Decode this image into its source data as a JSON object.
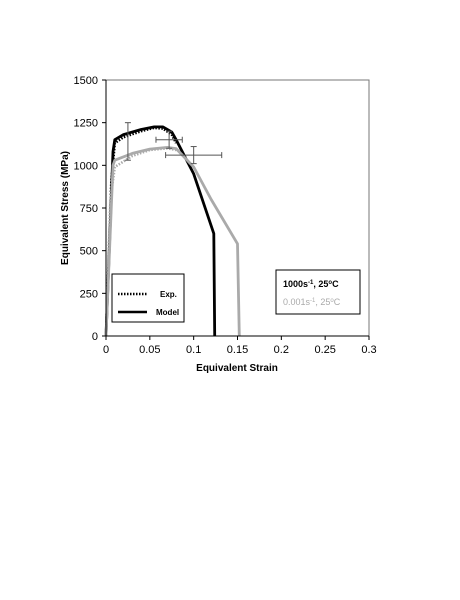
{
  "chart_data": {
    "type": "line",
    "xlabel": "Equivalent Strain",
    "ylabel": "Equivalent Stress (MPa)",
    "xlim": [
      0,
      0.3
    ],
    "ylim": [
      0,
      1500
    ],
    "x_ticks": [
      "0",
      "0.05",
      "0.1",
      "0.15",
      "0.2",
      "0.25",
      "0.3"
    ],
    "y_ticks": [
      "0",
      "250",
      "500",
      "750",
      "1000",
      "1250",
      "1500"
    ],
    "grid": false,
    "legend": {
      "placement": "bottom-left",
      "entries": [
        {
          "label": "Exp.",
          "style": "dotted",
          "color": "#000000"
        },
        {
          "label": "Model",
          "style": "solid",
          "color": "#000000"
        }
      ]
    },
    "conditions": [
      {
        "rate": "1000s",
        "exp": "-1",
        "rest": ", 25",
        "deg": "o",
        "unit": "C",
        "color": "#000000"
      },
      {
        "rate": "0.001s",
        "exp": "-1",
        "rest": ", 25",
        "deg": "o",
        "unit": "C",
        "color": "#aaaaaa"
      }
    ],
    "series": [
      {
        "condition": 0,
        "kind": "model",
        "color": "#000000",
        "style": "solid",
        "points": [
          [
            0,
            0
          ],
          [
            0.008,
            1080
          ],
          [
            0.01,
            1150
          ],
          [
            0.02,
            1180
          ],
          [
            0.04,
            1210
          ],
          [
            0.055,
            1225
          ],
          [
            0.065,
            1225
          ],
          [
            0.075,
            1195
          ],
          [
            0.08,
            1150
          ],
          [
            0.1,
            950
          ],
          [
            0.123,
            600
          ],
          [
            0.124,
            0
          ]
        ]
      },
      {
        "condition": 0,
        "kind": "exp",
        "color": "#000000",
        "style": "dotted",
        "points": [
          [
            0,
            0
          ],
          [
            0.006,
            900
          ],
          [
            0.01,
            1130
          ],
          [
            0.02,
            1165
          ],
          [
            0.04,
            1200
          ],
          [
            0.055,
            1220
          ],
          [
            0.065,
            1215
          ],
          [
            0.075,
            1180
          ],
          [
            0.08,
            1130
          ]
        ]
      },
      {
        "condition": 1,
        "kind": "model",
        "color": "#aaaaaa",
        "style": "solid",
        "points": [
          [
            0,
            0
          ],
          [
            0.008,
            1000
          ],
          [
            0.01,
            1030
          ],
          [
            0.03,
            1070
          ],
          [
            0.05,
            1095
          ],
          [
            0.07,
            1105
          ],
          [
            0.08,
            1098
          ],
          [
            0.1,
            990
          ],
          [
            0.12,
            800
          ],
          [
            0.15,
            540
          ],
          [
            0.152,
            0
          ]
        ]
      },
      {
        "condition": 1,
        "kind": "exp",
        "color": "#aaaaaa",
        "style": "dotted",
        "points": [
          [
            0,
            0
          ],
          [
            0.005,
            800
          ],
          [
            0.01,
            990
          ],
          [
            0.03,
            1055
          ],
          [
            0.05,
            1090
          ],
          [
            0.07,
            1100
          ],
          [
            0.08,
            1090
          ]
        ]
      }
    ],
    "error_bars": [
      {
        "x": 0.025,
        "y": 1140,
        "xerr": 0,
        "yerr": 110
      },
      {
        "x": 0.072,
        "y": 1150,
        "xerr": 0.015,
        "yerr": 50
      },
      {
        "x": 0.1,
        "y": 1060,
        "xerr": 0.032,
        "yerr": 50
      }
    ]
  }
}
